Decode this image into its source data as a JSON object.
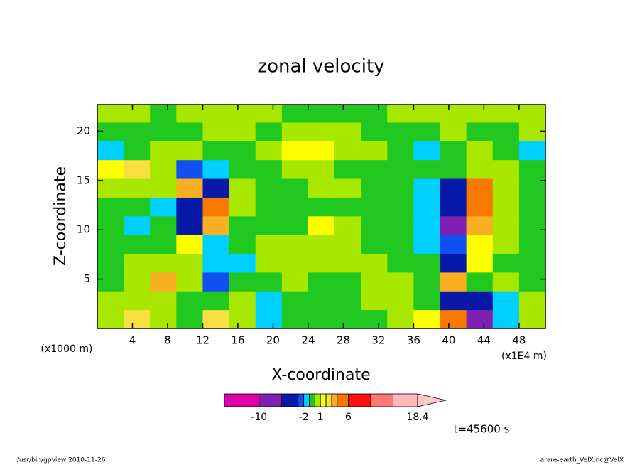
{
  "chart_data": {
    "type": "contour",
    "title": "zonal velocity",
    "x_label": "X-coordinate",
    "y_label": "Z-coordinate",
    "x_unit": "(x1E4 m)",
    "y_unit": "(x1000 m)",
    "annotation": "t=45600 s",
    "footer_left": "/usr/bin/gpview  2010-11-26",
    "footer_right": "arare-earth_VelX.nc@VelX",
    "xlim": [
      0,
      51
    ],
    "ylim": [
      0,
      22.7
    ],
    "xticks": [
      4,
      8,
      12,
      16,
      20,
      24,
      28,
      32,
      36,
      40,
      44,
      48
    ],
    "yticks": [
      5,
      10,
      15,
      20
    ],
    "xbins": [
      0,
      3,
      6,
      9,
      12,
      15,
      18,
      21,
      24,
      27,
      30,
      33,
      36,
      39,
      42,
      45,
      48,
      51
    ],
    "ybins": [
      0,
      1.9,
      3.8,
      5.7,
      7.6,
      9.5,
      11.4,
      13.3,
      15.2,
      17.1,
      19,
      20.9,
      22.7
    ],
    "field": [
      [
        0.5,
        2.5,
        0.5,
        -0.5,
        2.5,
        0.5,
        -1.5,
        -0.5,
        -0.5,
        -0.5,
        -0.5,
        0.5,
        1.5,
        4.5,
        -6.5,
        -1.5,
        0.5
      ],
      [
        0.5,
        0.5,
        0.5,
        -0.5,
        -0.5,
        0.5,
        -1.5,
        -0.5,
        -0.5,
        -0.5,
        0.5,
        0.5,
        -0.5,
        -3.5,
        -4.5,
        -1.5,
        0.5
      ],
      [
        -0.5,
        0.5,
        3.5,
        0.5,
        -2.5,
        -0.5,
        -0.5,
        0.5,
        -0.5,
        -0.5,
        0.5,
        0.5,
        -0.5,
        3.5,
        -0.5,
        0.5,
        -0.5
      ],
      [
        -0.5,
        0.5,
        0.5,
        0.5,
        -1.5,
        -1.5,
        0.5,
        0.5,
        0.5,
        0.5,
        0.5,
        -0.5,
        -0.5,
        -4.5,
        1.5,
        -0.5,
        -0.5
      ],
      [
        -0.5,
        -0.5,
        -0.5,
        1.5,
        -1.5,
        -0.5,
        0.5,
        0.5,
        0.5,
        0.5,
        -0.5,
        -0.5,
        -1.5,
        -2.5,
        1.5,
        0.5,
        -0.5
      ],
      [
        -0.5,
        -1.5,
        -0.5,
        -4.5,
        3.5,
        -0.5,
        -0.5,
        -0.5,
        1.5,
        0.5,
        -0.5,
        -0.5,
        -1.5,
        -8,
        3.5,
        0.5,
        -0.5
      ],
      [
        -0.5,
        -0.5,
        -1.5,
        -4.5,
        5,
        0.5,
        -0.5,
        -0.5,
        -0.5,
        -0.5,
        -0.5,
        -0.5,
        -1.5,
        -4.5,
        5,
        0.5,
        -0.5
      ],
      [
        0.5,
        0.5,
        0.5,
        3.5,
        -3.5,
        0.5,
        -0.5,
        -0.5,
        0.5,
        0.5,
        -0.5,
        -0.5,
        -1.5,
        -3.5,
        5,
        0.5,
        -0.5
      ],
      [
        1.5,
        2.5,
        0.5,
        -2.5,
        -1.5,
        -0.5,
        -0.5,
        0.5,
        0.5,
        -0.5,
        -0.5,
        -0.5,
        -0.5,
        -0.5,
        0.5,
        0.5,
        -0.5
      ],
      [
        -1.5,
        -0.5,
        0.5,
        0.5,
        -0.5,
        -0.5,
        0.5,
        1.5,
        1.5,
        0.5,
        0.5,
        -0.5,
        -1.5,
        -0.5,
        0.5,
        -0.5,
        -1.5
      ],
      [
        -0.5,
        -0.5,
        -0.5,
        -0.5,
        0.5,
        0.5,
        -0.5,
        0.5,
        0.5,
        0.5,
        -0.5,
        -0.5,
        -0.5,
        0.5,
        -0.5,
        -0.5,
        0.5
      ],
      [
        0.5,
        0.5,
        -0.5,
        0.5,
        0.5,
        0.5,
        0.5,
        -0.5,
        -0.5,
        -0.5,
        -0.5,
        0.5,
        0.5,
        0.5,
        0.5,
        0.5,
        0.5
      ]
    ],
    "levels": [
      -16.2,
      -10,
      -6,
      -3,
      -2,
      -1,
      0,
      1,
      2,
      3,
      4,
      6,
      10,
      14,
      18.4
    ],
    "colors": [
      "#e000a8",
      "#8020b0",
      "#0818a8",
      "#1050f0",
      "#00d0ff",
      "#20c820",
      "#a8e800",
      "#ffff00",
      "#f8e040",
      "#f8b020",
      "#f87800",
      "#ff1010",
      "#ff7878",
      "#ffb8b8"
    ],
    "extend_color": "#ffc8c8",
    "colorbar_ticks": [
      -10,
      -2,
      1,
      6,
      18.4
    ]
  }
}
